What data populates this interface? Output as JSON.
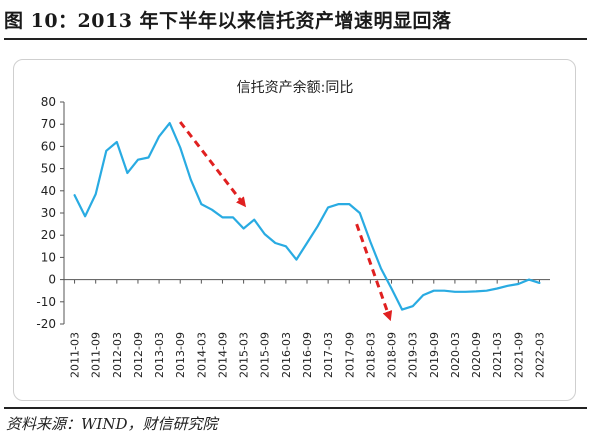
{
  "figure": {
    "title": "图 10：2013 年下半年以来信托资产增速明显回落",
    "source": "资料来源：WIND，财信研究院"
  },
  "colors": {
    "series": "#29abe2",
    "arrow": "#e02020",
    "axis": "#555555",
    "text": "#222222"
  },
  "chart_data": {
    "type": "line",
    "title": "信托资产余额:同比",
    "xlabel": "",
    "ylabel": "",
    "ylim": [
      -20,
      80
    ],
    "yticks": [
      80,
      70,
      60,
      50,
      40,
      30,
      20,
      10,
      0,
      -10,
      -20
    ],
    "grid": false,
    "categories": [
      "2011-03",
      "2011-09",
      "2012-03",
      "2012-09",
      "2013-03",
      "2013-09",
      "2014-03",
      "2014-09",
      "2015-03",
      "2015-09",
      "2016-03",
      "2016-09",
      "2017-03",
      "2017-09",
      "2018-03",
      "2018-09",
      "2019-03",
      "2019-09",
      "2020-03",
      "2020-09",
      "2021-03",
      "2021-09",
      "2022-03"
    ],
    "series": [
      {
        "x": [
          0,
          0.5,
          1,
          1.5,
          2,
          2.5,
          3,
          3.5,
          4,
          4.5,
          5,
          5.5,
          6,
          6.5,
          7,
          7.5,
          8,
          8.5,
          9,
          9.5,
          10,
          10.5,
          11,
          11.5,
          12,
          12.5,
          13,
          13.5,
          14,
          14.5,
          15,
          15.5,
          16,
          16.5,
          17,
          17.5,
          18,
          18.5,
          19,
          19.5,
          20,
          20.5,
          21,
          21.5,
          22
        ],
        "values": [
          38,
          28.5,
          38.5,
          58,
          62,
          48,
          54,
          55,
          64.5,
          70.5,
          59.5,
          45,
          34,
          31.5,
          28,
          28,
          23,
          27,
          20.5,
          16.5,
          15,
          9,
          16.5,
          24,
          32.5,
          34,
          34,
          30,
          17,
          5,
          -4,
          -13.5,
          -12,
          -7,
          -5,
          -5,
          -5.5,
          -5.5,
          -5.3,
          -5,
          -4,
          -2.8,
          -2,
          0,
          -1.5
        ]
      }
    ],
    "annotations": [
      {
        "type": "arrow",
        "style": "dashed",
        "from": [
          5,
          71
        ],
        "to": [
          8,
          34
        ]
      },
      {
        "type": "arrow",
        "style": "dashed",
        "from": [
          13.35,
          25
        ],
        "to": [
          14.9,
          -17
        ]
      }
    ]
  }
}
